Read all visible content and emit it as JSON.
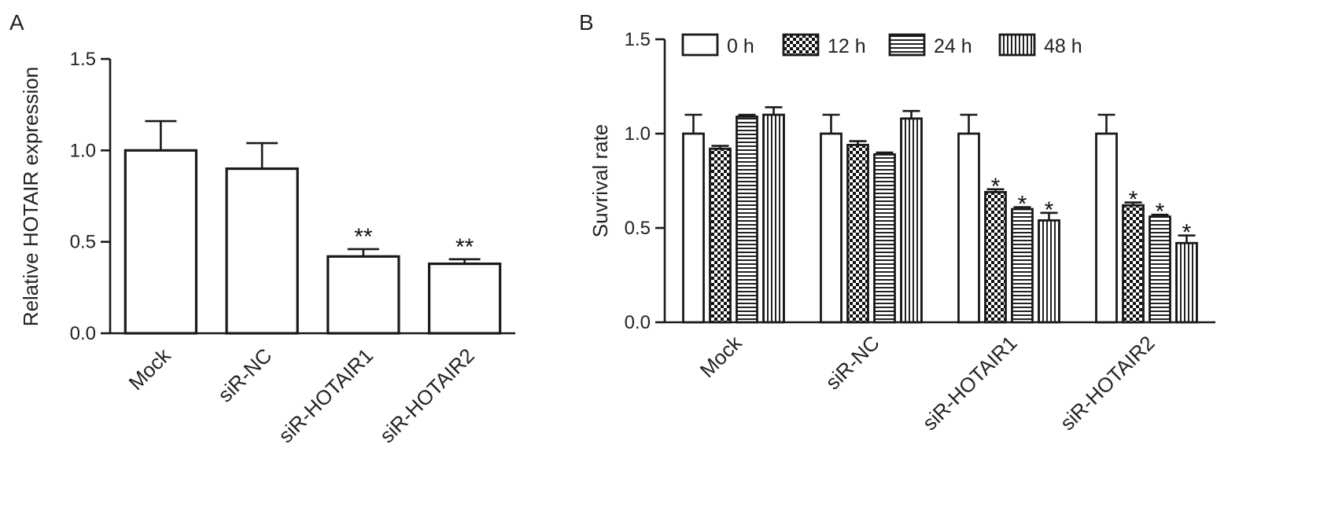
{
  "chart_data": [
    {
      "panel": "A",
      "type": "bar",
      "ylabel": "Relative HOTAIR expression",
      "xlabel": "",
      "ylim": [
        0,
        1.5
      ],
      "yticks": [
        "0.0",
        "0.5",
        "1.0",
        "1.5"
      ],
      "categories": [
        "Mock",
        "siR-NC",
        "siR-HOTAIR1",
        "siR-HOTAIR2"
      ],
      "values": [
        1.0,
        0.9,
        0.42,
        0.38
      ],
      "errors": [
        0.16,
        0.14,
        0.04,
        0.025
      ],
      "annotations": [
        "",
        "",
        "**",
        "**"
      ],
      "grid": false,
      "colors": {
        "bar_fill": "#ffffff",
        "bar_stroke": "#1a1a1a"
      }
    },
    {
      "panel": "B",
      "type": "bar",
      "ylabel": "Suvrival rate",
      "xlabel": "",
      "ylim": [
        0,
        1.5
      ],
      "yticks": [
        "0.0",
        "0.5",
        "1.0",
        "1.5"
      ],
      "categories": [
        "Mock",
        "siR-NC",
        "siR-HOTAIR1",
        "siR-HOTAIR2"
      ],
      "legend_position": "top",
      "grid": false,
      "series": [
        {
          "name": "0 h",
          "pattern": "white",
          "values": [
            1.0,
            1.0,
            1.0,
            1.0
          ],
          "errors": [
            0.1,
            0.1,
            0.1,
            0.1
          ],
          "annotations": [
            "",
            "",
            "",
            ""
          ]
        },
        {
          "name": "12 h",
          "pattern": "checker",
          "values": [
            0.92,
            0.94,
            0.69,
            0.62
          ],
          "errors": [
            0.015,
            0.02,
            0.015,
            0.015
          ],
          "annotations": [
            "",
            "",
            "*",
            "*"
          ]
        },
        {
          "name": "24 h",
          "pattern": "horizontal-lines",
          "values": [
            1.09,
            0.89,
            0.6,
            0.56
          ],
          "errors": [
            0.01,
            0.01,
            0.01,
            0.01
          ],
          "annotations": [
            "",
            "",
            "*",
            "*"
          ]
        },
        {
          "name": "48 h",
          "pattern": "vertical-lines",
          "values": [
            1.1,
            1.08,
            0.54,
            0.42
          ],
          "errors": [
            0.04,
            0.04,
            0.04,
            0.04
          ],
          "annotations": [
            "",
            "",
            "*",
            "*"
          ]
        }
      ]
    }
  ],
  "panels": {
    "a_letter": "A",
    "b_letter": "B"
  }
}
